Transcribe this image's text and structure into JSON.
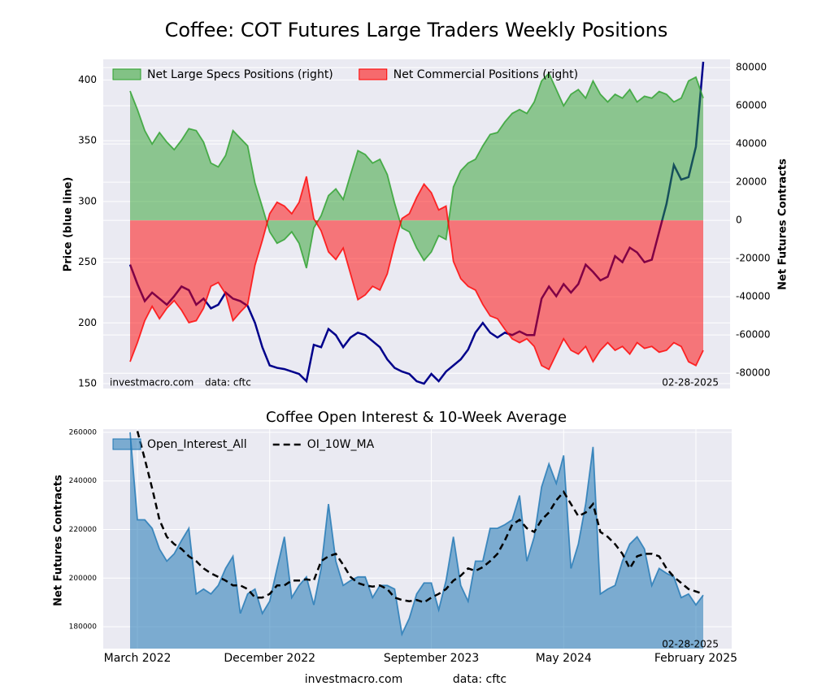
{
  "chart_data": [
    {
      "type": "area",
      "title": "Coffee: COT Futures Large Traders Weekly Positions",
      "ylabel": "Price (blue line)",
      "y2label": "Net Futures Contracts",
      "ylim": [
        146,
        417
      ],
      "yticks": [
        150,
        200,
        250,
        300,
        350,
        400
      ],
      "y2lim": [
        -88000,
        84300
      ],
      "y2ticks": [
        -80000,
        -60000,
        -40000,
        -20000,
        0,
        20000,
        40000,
        60000,
        80000
      ],
      "grid": true,
      "legend": "upper left",
      "source": "investmacro.com",
      "data_source": "data: cftc",
      "date": "02-28-2025",
      "series": [
        {
          "color": "#00008b",
          "style": "line",
          "values": [
            248,
            232,
            218,
            225,
            220,
            215,
            222,
            230,
            227,
            215,
            220,
            212,
            215,
            225,
            220,
            218,
            214,
            200,
            180,
            165,
            163,
            162,
            160,
            158,
            152,
            182,
            180,
            195,
            190,
            180,
            188,
            192,
            190,
            185,
            180,
            170,
            163,
            160,
            158,
            152,
            150,
            158,
            152,
            160,
            165,
            170,
            178,
            192,
            200,
            192,
            188,
            192,
            190,
            193,
            190,
            190,
            220,
            230,
            222,
            232,
            225,
            232,
            248,
            242,
            235,
            238,
            255,
            250,
            262,
            258,
            250,
            252,
            275,
            298,
            330,
            318,
            320,
            345,
            415
          ]
        },
        {
          "name": "Net Large Specs Positions (right)",
          "color": "#2ca02c",
          "style": "area",
          "axis": "y2",
          "values": [
            67700,
            58000,
            47000,
            40000,
            46000,
            41000,
            37000,
            42000,
            48000,
            47000,
            41000,
            30000,
            28000,
            34000,
            47000,
            43000,
            39000,
            19500,
            7000,
            -6000,
            -12000,
            -10000,
            -6000,
            -12000,
            -25000,
            -4000,
            2500,
            13000,
            16500,
            11000,
            24000,
            36500,
            34500,
            30000,
            32000,
            24000,
            9000,
            -4000,
            -6000,
            -14500,
            -21000,
            -16500,
            -8000,
            -10000,
            17500,
            26000,
            30000,
            32000,
            39000,
            45000,
            46000,
            51500,
            56000,
            58000,
            56000,
            62000,
            73000,
            77000,
            68500,
            60000,
            66000,
            68500,
            64000,
            73000,
            66000,
            62000,
            66000,
            64000,
            68500,
            62000,
            65000,
            64000,
            67500,
            66000,
            62000,
            64000,
            73000,
            75000,
            64000
          ]
        },
        {
          "name": "Net Commercial Positions (right)",
          "color": "#ff0000",
          "style": "area",
          "axis": "y2",
          "values": [
            -74000,
            -64000,
            -52500,
            -45000,
            -51500,
            -46000,
            -42000,
            -47000,
            -53500,
            -52500,
            -46000,
            -34500,
            -32500,
            -38500,
            -52500,
            -48000,
            -44000,
            -23500,
            -10500,
            3500,
            9500,
            7500,
            3500,
            9500,
            23000,
            1000,
            -5500,
            -16500,
            -20500,
            -14500,
            -28000,
            -41500,
            -39000,
            -34500,
            -36500,
            -28000,
            -12500,
            1000,
            3500,
            12000,
            19000,
            14500,
            5500,
            7500,
            -21500,
            -30500,
            -34500,
            -36500,
            -44000,
            -50000,
            -51500,
            -57000,
            -62000,
            -64000,
            -62000,
            -66000,
            -76000,
            -78000,
            -70000,
            -62000,
            -68000,
            -70000,
            -66000,
            -74000,
            -68000,
            -64000,
            -68000,
            -66000,
            -70000,
            -64000,
            -67000,
            -66000,
            -69000,
            -68000,
            -64000,
            -66000,
            -74000,
            -76000,
            -68000
          ]
        }
      ]
    },
    {
      "type": "area",
      "title": "Coffee Open Interest & 10-Week Average",
      "ylabel": "Net Futures Contracts",
      "categories": [
        null,
        "March 2022",
        null,
        null,
        null,
        null,
        null,
        null,
        null,
        null,
        null,
        null,
        null,
        null,
        null,
        null,
        null,
        null,
        null,
        "December 2022",
        null,
        null,
        null,
        null,
        null,
        null,
        null,
        null,
        null,
        null,
        null,
        null,
        null,
        null,
        null,
        null,
        null,
        null,
        null,
        null,
        null,
        "September 2023",
        null,
        null,
        null,
        null,
        null,
        null,
        null,
        null,
        null,
        null,
        null,
        null,
        null,
        null,
        null,
        null,
        null,
        "May 2024",
        null,
        null,
        null,
        null,
        null,
        null,
        null,
        null,
        null,
        null,
        null,
        null,
        null,
        null,
        null,
        null,
        null,
        "February 2025",
        null
      ],
      "ylim": [
        171000,
        261300
      ],
      "yticks": [
        180000,
        200000,
        220000,
        240000,
        260000
      ],
      "grid": true,
      "legend": "upper left",
      "date": "02-28-2025",
      "series": [
        {
          "name": "Open_Interest_All",
          "color": "#1f77b4",
          "style": "area",
          "values": [
            260000,
            224000,
            224000,
            220500,
            212000,
            207000,
            210000,
            215500,
            220500,
            193500,
            195500,
            193500,
            197000,
            204000,
            209000,
            185500,
            193500,
            195500,
            185500,
            190500,
            204000,
            217000,
            192000,
            197000,
            200500,
            189000,
            204000,
            230500,
            207000,
            197000,
            199000,
            200500,
            200500,
            192000,
            197000,
            197000,
            195500,
            177000,
            183500,
            193500,
            198000,
            198000,
            187000,
            199000,
            217000,
            197000,
            190500,
            207000,
            207000,
            220500,
            220500,
            222000,
            224000,
            234000,
            207000,
            217000,
            237500,
            247000,
            239000,
            250500,
            204000,
            214000,
            230500,
            254000,
            193500,
            195500,
            197000,
            207000,
            214000,
            217000,
            212000,
            197000,
            204000,
            202000,
            200500,
            192000,
            193500,
            189000,
            193000
          ]
        },
        {
          "name": "OI_10W_MA",
          "color": "#000000",
          "style": "dashed",
          "values": [
            null,
            260500,
            249000,
            237000,
            224000,
            217000,
            214000,
            212000,
            209000,
            207000,
            204000,
            202000,
            200500,
            199000,
            197000,
            197000,
            195500,
            192000,
            192000,
            193500,
            197000,
            197000,
            199000,
            199000,
            199500,
            199000,
            207000,
            209000,
            210000,
            205500,
            200500,
            198000,
            197000,
            196500,
            197000,
            195500,
            192000,
            191000,
            190500,
            191000,
            190000,
            192000,
            193500,
            195500,
            199000,
            201000,
            204000,
            203000,
            204500,
            207000,
            210000,
            215500,
            222000,
            224000,
            220500,
            219000,
            224000,
            227000,
            232000,
            235500,
            230500,
            225500,
            227000,
            230500,
            219000,
            217000,
            214000,
            210000,
            204000,
            209000,
            210000,
            210000,
            209000,
            204000,
            200500,
            198000,
            195500,
            194500,
            193500
          ]
        }
      ]
    }
  ],
  "footer": {
    "source": "investmacro.com",
    "data_source": "data: cftc"
  }
}
